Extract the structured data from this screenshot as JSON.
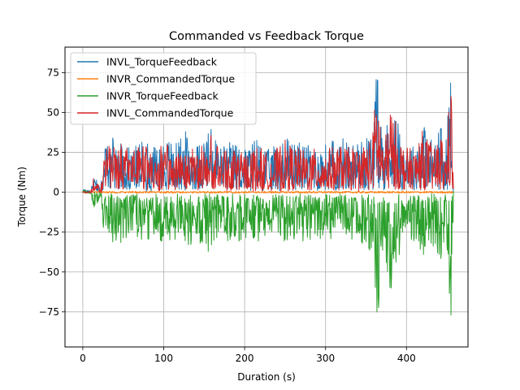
{
  "chart_data": {
    "type": "line",
    "title": "Commanded vs Feedback Torque",
    "xlabel": "Duration (s)",
    "ylabel": "Torque (Nm)",
    "xlim": [
      -22,
      476
    ],
    "ylim": [
      -97,
      91
    ],
    "xticks": [
      0,
      100,
      200,
      300,
      400
    ],
    "yticks": [
      -75,
      -50,
      -25,
      0,
      25,
      50,
      75
    ],
    "grid": true,
    "legend_position": "top-left",
    "series": [
      {
        "name": "INVL_TorqueFeedback",
        "color": "#1f77b4",
        "peaks": [
          [
            0,
            2
          ],
          [
            10,
            1
          ],
          [
            14,
            15
          ],
          [
            22,
            2
          ],
          [
            27,
            32
          ],
          [
            45,
            34
          ],
          [
            60,
            28
          ],
          [
            75,
            33
          ],
          [
            88,
            28
          ],
          [
            100,
            35
          ],
          [
            115,
            32
          ],
          [
            128,
            38
          ],
          [
            140,
            30
          ],
          [
            158,
            42
          ],
          [
            170,
            30
          ],
          [
            188,
            32
          ],
          [
            200,
            28
          ],
          [
            215,
            35
          ],
          [
            230,
            26
          ],
          [
            250,
            36
          ],
          [
            265,
            32
          ],
          [
            280,
            30
          ],
          [
            300,
            30
          ],
          [
            315,
            35
          ],
          [
            330,
            32
          ],
          [
            345,
            34
          ],
          [
            358,
            40
          ],
          [
            363,
            80
          ],
          [
            372,
            32
          ],
          [
            380,
            60
          ],
          [
            395,
            35
          ],
          [
            410,
            30
          ],
          [
            420,
            45
          ],
          [
            435,
            30
          ],
          [
            442,
            45
          ],
          [
            448,
            25
          ],
          [
            455,
            83
          ],
          [
            458,
            5
          ]
        ]
      },
      {
        "name": "INVR_CommandedTorque",
        "color": "#ff7f0e",
        "peaks": [
          [
            0,
            0
          ],
          [
            100,
            0
          ],
          [
            200,
            0
          ],
          [
            300,
            0
          ],
          [
            400,
            0
          ],
          [
            458,
            0
          ]
        ]
      },
      {
        "name": "INVR_TorqueFeedback",
        "color": "#2ca02c",
        "peaks": [
          [
            0,
            2
          ],
          [
            10,
            -1
          ],
          [
            14,
            -15
          ],
          [
            22,
            -2
          ],
          [
            27,
            -32
          ],
          [
            45,
            -32
          ],
          [
            60,
            -28
          ],
          [
            75,
            -32
          ],
          [
            88,
            -28
          ],
          [
            100,
            -33
          ],
          [
            115,
            -30
          ],
          [
            128,
            -36
          ],
          [
            140,
            -30
          ],
          [
            158,
            -38
          ],
          [
            170,
            -30
          ],
          [
            188,
            -32
          ],
          [
            200,
            -30
          ],
          [
            215,
            -32
          ],
          [
            230,
            -26
          ],
          [
            250,
            -34
          ],
          [
            265,
            -32
          ],
          [
            280,
            -30
          ],
          [
            300,
            -28
          ],
          [
            315,
            -30
          ],
          [
            330,
            -28
          ],
          [
            345,
            -34
          ],
          [
            358,
            -42
          ],
          [
            363,
            -90
          ],
          [
            372,
            -34
          ],
          [
            380,
            -65
          ],
          [
            395,
            -32
          ],
          [
            410,
            -30
          ],
          [
            420,
            -45
          ],
          [
            435,
            -32
          ],
          [
            442,
            -45
          ],
          [
            448,
            -25
          ],
          [
            455,
            -90
          ],
          [
            458,
            -5
          ]
        ]
      },
      {
        "name": "INVL_CommandedTorque",
        "color": "#d62728",
        "peaks": [
          [
            0,
            0
          ],
          [
            10,
            0
          ],
          [
            14,
            12
          ],
          [
            22,
            0
          ],
          [
            27,
            28
          ],
          [
            45,
            30
          ],
          [
            60,
            25
          ],
          [
            75,
            30
          ],
          [
            88,
            25
          ],
          [
            100,
            30
          ],
          [
            115,
            28
          ],
          [
            128,
            32
          ],
          [
            140,
            27
          ],
          [
            158,
            36
          ],
          [
            170,
            27
          ],
          [
            188,
            28
          ],
          [
            200,
            25
          ],
          [
            215,
            30
          ],
          [
            230,
            23
          ],
          [
            250,
            32
          ],
          [
            265,
            28
          ],
          [
            280,
            27
          ],
          [
            300,
            26
          ],
          [
            315,
            30
          ],
          [
            330,
            28
          ],
          [
            345,
            30
          ],
          [
            358,
            35
          ],
          [
            363,
            72
          ],
          [
            372,
            28
          ],
          [
            380,
            55
          ],
          [
            395,
            30
          ],
          [
            410,
            27
          ],
          [
            420,
            40
          ],
          [
            435,
            27
          ],
          [
            442,
            40
          ],
          [
            448,
            22
          ],
          [
            455,
            75
          ],
          [
            458,
            3
          ]
        ]
      }
    ]
  }
}
